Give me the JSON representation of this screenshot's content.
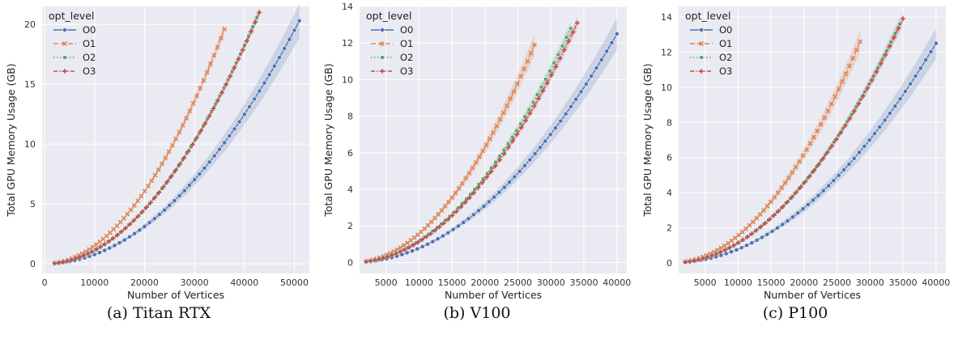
{
  "chart_data": [
    {
      "type": "line",
      "caption": "(a) Titan RTX",
      "xlabel": "Number of Vertices",
      "ylabel": "Total GPU Memory Usage (GB)",
      "xlim": [
        -500,
        53000
      ],
      "ylim": [
        -0.8,
        21.5
      ],
      "xticks": [
        0,
        10000,
        20000,
        30000,
        40000,
        50000
      ],
      "yticks": [
        0,
        5,
        10,
        15,
        20
      ],
      "legend": {
        "title": "opt_level",
        "placement": "top-left"
      },
      "grid": true,
      "series": [
        {
          "name": "O0",
          "color": "#4c72b0",
          "marker": "circle",
          "dash": "solid",
          "x_start": 2000,
          "x_end": 51000,
          "y_end": 20.3,
          "n_points": 50,
          "band": 0.07
        },
        {
          "name": "O1",
          "color": "#dd8452",
          "marker": "x",
          "dash": "dashed",
          "x_start": 2000,
          "x_end": 36000,
          "y_end": 19.6,
          "n_points": 50,
          "band": 0.025
        },
        {
          "name": "O2",
          "color": "#55a868",
          "marker": "square",
          "dash": "dotted",
          "x_start": 2000,
          "x_end": 42500,
          "y_end": 20.6,
          "n_points": 50,
          "band": 0.02
        },
        {
          "name": "O3",
          "color": "#c44e52",
          "marker": "plus",
          "dash": "dashdot",
          "x_start": 2000,
          "x_end": 43000,
          "y_end": 21.0,
          "n_points": 50,
          "band": 0.02
        }
      ]
    },
    {
      "type": "line",
      "caption": "(b) V100",
      "xlabel": "Number of Vertices",
      "ylabel": "Total GPU Memory Usage (GB)",
      "xlim": [
        1000,
        41500
      ],
      "ylim": [
        -0.6,
        14
      ],
      "xticks": [
        5000,
        10000,
        15000,
        20000,
        25000,
        30000,
        35000,
        40000
      ],
      "yticks": [
        0,
        2,
        4,
        6,
        8,
        10,
        12,
        14
      ],
      "legend": {
        "title": "opt_level",
        "placement": "top-left"
      },
      "grid": true,
      "series": [
        {
          "name": "O0",
          "color": "#4c72b0",
          "marker": "circle",
          "dash": "solid",
          "x_start": 2000,
          "x_end": 40000,
          "y_end": 12.5,
          "n_points": 50,
          "band": 0.07
        },
        {
          "name": "O1",
          "color": "#dd8452",
          "marker": "x",
          "dash": "dashed",
          "x_start": 2000,
          "x_end": 27500,
          "y_end": 11.9,
          "n_points": 50,
          "band": 0.05
        },
        {
          "name": "O2",
          "color": "#55a868",
          "marker": "square",
          "dash": "dotted",
          "x_start": 2000,
          "x_end": 33000,
          "y_end": 12.8,
          "n_points": 50,
          "band": 0.03
        },
        {
          "name": "O3",
          "color": "#c44e52",
          "marker": "plus",
          "dash": "dashdot",
          "x_start": 2000,
          "x_end": 34000,
          "y_end": 13.1,
          "n_points": 50,
          "band": 0.025
        }
      ]
    },
    {
      "type": "line",
      "caption": "(c) P100",
      "xlabel": "Number of Vertices",
      "ylabel": "Total GPU Memory Usage (GB)",
      "xlim": [
        1000,
        41500
      ],
      "ylim": [
        -0.6,
        14.6
      ],
      "xticks": [
        5000,
        10000,
        15000,
        20000,
        25000,
        30000,
        35000,
        40000
      ],
      "yticks": [
        0,
        2,
        4,
        6,
        8,
        10,
        12,
        14
      ],
      "legend": {
        "title": "opt_level",
        "placement": "top-left"
      },
      "grid": true,
      "series": [
        {
          "name": "O0",
          "color": "#4c72b0",
          "marker": "circle",
          "dash": "solid",
          "x_start": 2000,
          "x_end": 40000,
          "y_end": 12.5,
          "n_points": 50,
          "band": 0.07
        },
        {
          "name": "O1",
          "color": "#dd8452",
          "marker": "x",
          "dash": "dashed",
          "x_start": 2000,
          "x_end": 28500,
          "y_end": 12.6,
          "n_points": 50,
          "band": 0.05
        },
        {
          "name": "O2",
          "color": "#55a868",
          "marker": "square",
          "dash": "dotted",
          "x_start": 2000,
          "x_end": 34500,
          "y_end": 13.6,
          "n_points": 50,
          "band": 0.03
        },
        {
          "name": "O3",
          "color": "#c44e52",
          "marker": "plus",
          "dash": "dashdot",
          "x_start": 2000,
          "x_end": 35000,
          "y_end": 13.9,
          "n_points": 50,
          "band": 0.025
        }
      ]
    }
  ]
}
